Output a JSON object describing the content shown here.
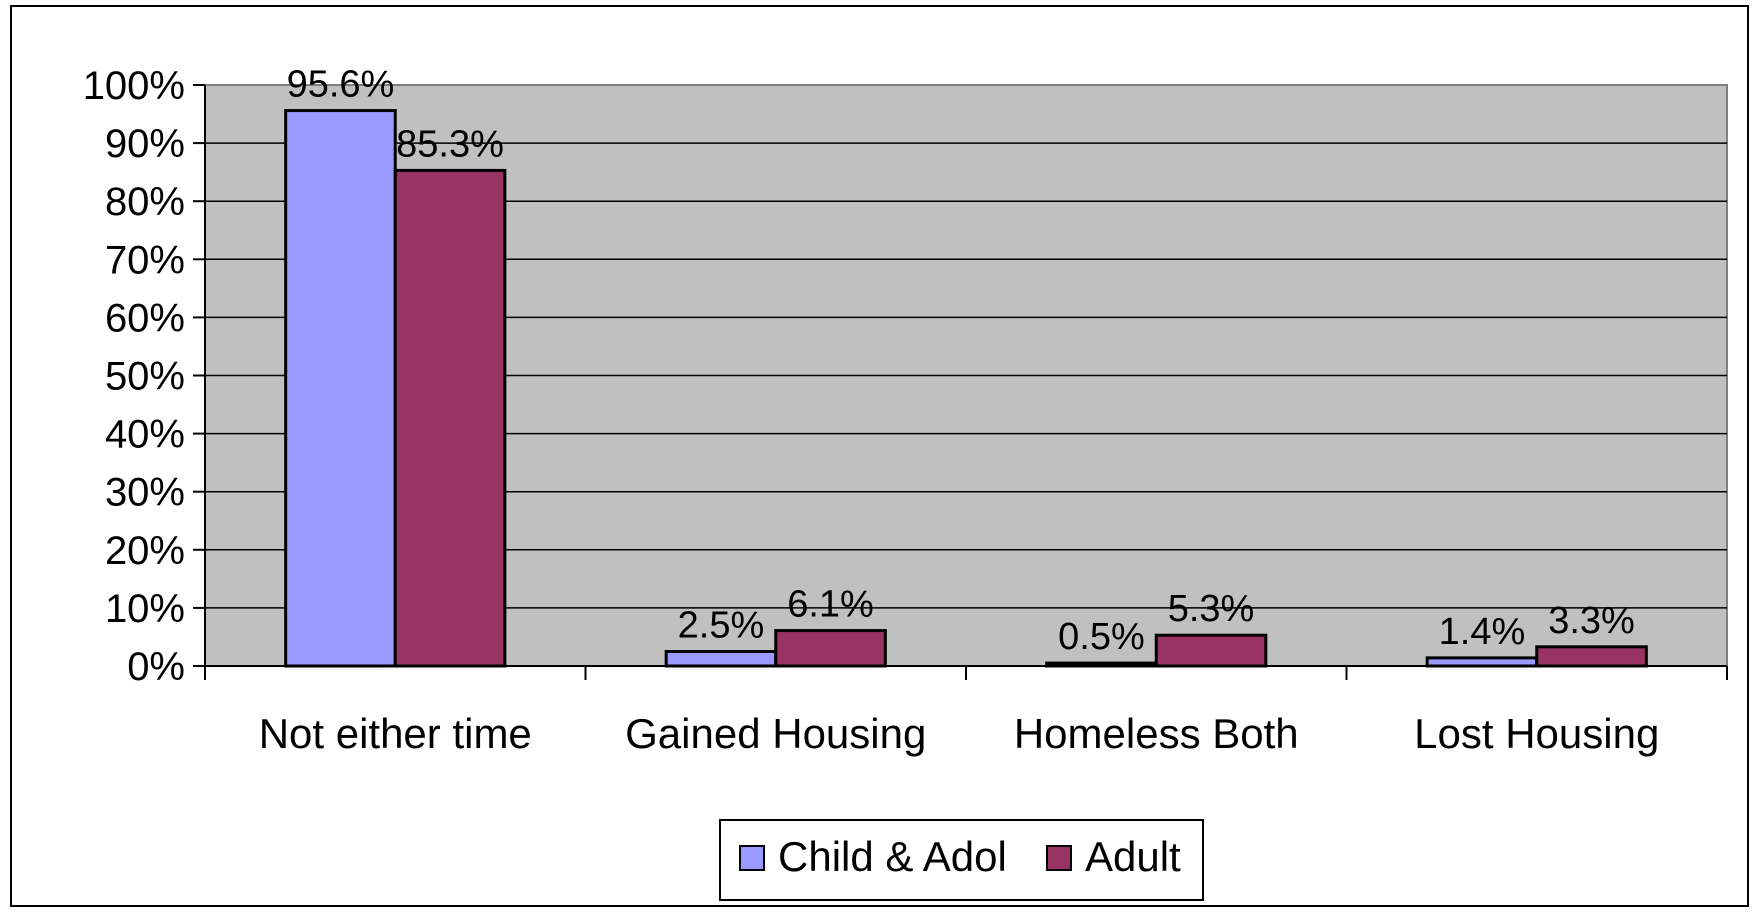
{
  "chart_data": {
    "type": "bar",
    "categories": [
      "Not either time",
      "Gained Housing",
      "Homeless Both",
      "Lost Housing"
    ],
    "series": [
      {
        "name": "Child & Adol",
        "color": "#9999ff",
        "values": [
          95.6,
          2.5,
          0.5,
          1.4
        ],
        "labels": [
          "95.6%",
          "2.5%",
          "0.5%",
          "1.4%"
        ]
      },
      {
        "name": "Adult",
        "color": "#993366",
        "values": [
          85.3,
          6.1,
          5.3,
          3.3
        ],
        "labels": [
          "85.3%",
          "6.1%",
          "5.3%",
          "3.3%"
        ]
      }
    ],
    "yticks": [
      "0%",
      "10%",
      "20%",
      "30%",
      "40%",
      "50%",
      "60%",
      "70%",
      "80%",
      "90%",
      "100%"
    ],
    "ylim": [
      0,
      100
    ],
    "grid": true,
    "plot_background": "#c0c0c0",
    "legend_position": "bottom"
  }
}
